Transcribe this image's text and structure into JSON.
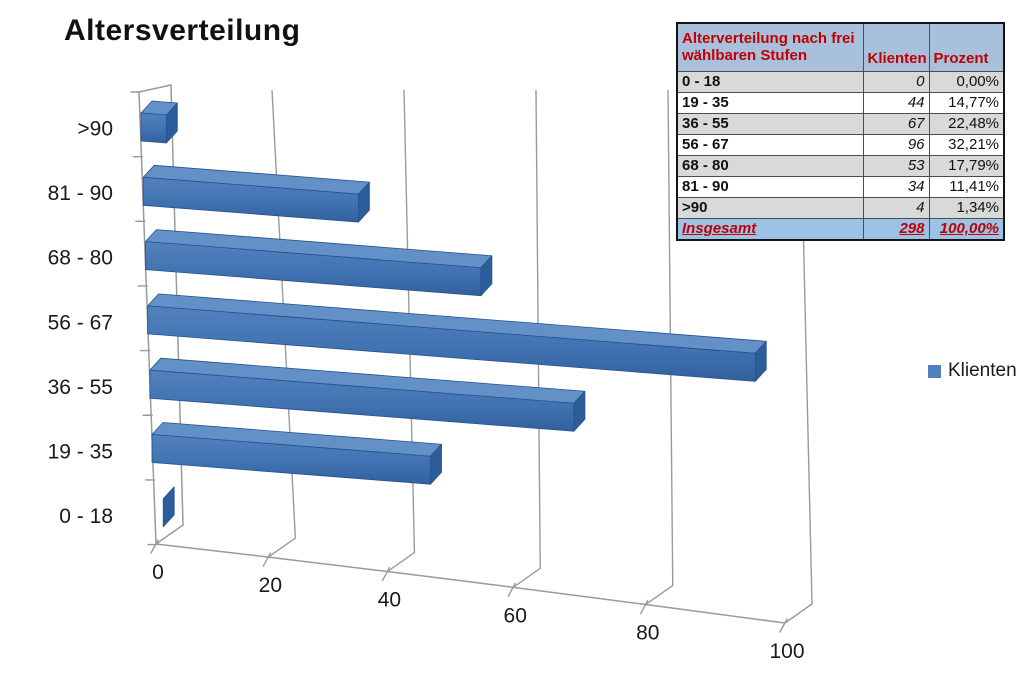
{
  "title": "Altersverteilung",
  "legend": {
    "label": "Klienten",
    "swatch_color": "#4f81bd"
  },
  "chart_data": {
    "type": "bar",
    "orientation": "horizontal",
    "style": "3d-perspective",
    "title": "Altersverteilung",
    "categories": [
      ">90",
      "81 - 90",
      "68 - 80",
      "56 - 67",
      "36 - 55",
      "19 - 35",
      "0 - 18"
    ],
    "series": [
      {
        "name": "Klienten",
        "values": [
          4,
          34,
          53,
          96,
          67,
          44,
          0
        ]
      }
    ],
    "x_ticks": [
      0,
      20,
      40,
      60,
      80,
      100
    ],
    "xlim": [
      0,
      100
    ],
    "grid": true,
    "legend_position": "right",
    "axis_color": "#9a9a9a",
    "label_color": "#1a1a1a",
    "bar_colors": {
      "front_top": "#5282bd",
      "front_mid": "#4173b2",
      "front_bottom": "#33609d",
      "top": "#6490c8",
      "side": "#2d5c9b",
      "edge": "#27538f"
    }
  },
  "table": {
    "header": {
      "col1": "Alterverteilung nach frei wählbaren Stufen",
      "col2": "Klienten",
      "col3": "Prozent"
    },
    "rows": [
      {
        "stufe": "0 - 18",
        "klienten": "0",
        "prozent": "0,00%"
      },
      {
        "stufe": "19 - 35",
        "klienten": "44",
        "prozent": "14,77%"
      },
      {
        "stufe": "36 - 55",
        "klienten": "67",
        "prozent": "22,48%"
      },
      {
        "stufe": "56 - 67",
        "klienten": "96",
        "prozent": "32,21%"
      },
      {
        "stufe": "68 - 80",
        "klienten": "53",
        "prozent": "17,79%"
      },
      {
        "stufe": "81 - 90",
        "klienten": "34",
        "prozent": "11,41%"
      },
      {
        "stufe": ">90",
        "klienten": "4",
        "prozent": "1,34%"
      }
    ],
    "total": {
      "stufe": "Insgesamt",
      "klienten": "298",
      "prozent": "100,00%"
    },
    "colors": {
      "header_bg": "#a9c0dc",
      "row_alt_bg": "#d9d9d9",
      "row_bg": "#ffffff",
      "total_bg": "#9cc2e5",
      "accent_text": "#c00000",
      "number_color": "#1a1a1a"
    }
  }
}
